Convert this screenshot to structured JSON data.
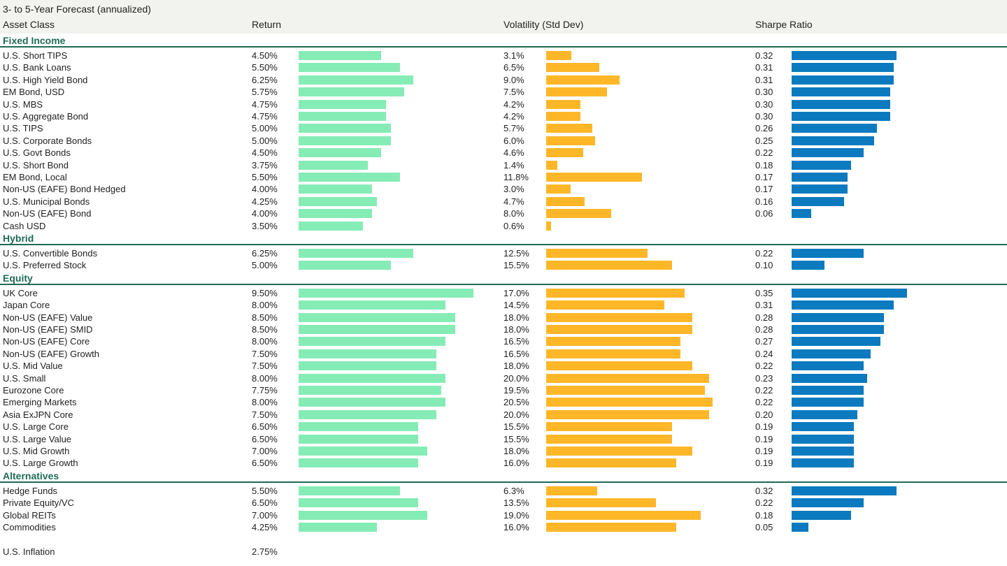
{
  "title": "3- to 5-Year Forecast (annualized)",
  "columns": {
    "asset": "Asset Class",
    "ret": "Return",
    "vol": "Volatility (Std Dev)",
    "sharpe": "Sharpe Ratio"
  },
  "colors": {
    "return": "#86ecb6",
    "volatility": "#ffb728",
    "sharpe": "#0b7abf",
    "section": "#1e6b57"
  },
  "chart_data": {
    "type": "bar",
    "series": [
      "Return",
      "Volatility (Std Dev)",
      "Sharpe Ratio"
    ],
    "groups": [
      {
        "name": "Fixed Income",
        "rows": [
          {
            "asset": "U.S. Short TIPS",
            "ret": "4.50%",
            "vol": "3.1%",
            "sharpe": "0.32"
          },
          {
            "asset": "U.S. Bank Loans",
            "ret": "5.50%",
            "vol": "6.5%",
            "sharpe": "0.31"
          },
          {
            "asset": "U.S. High Yield Bond",
            "ret": "6.25%",
            "vol": "9.0%",
            "sharpe": "0.31"
          },
          {
            "asset": "EM Bond, USD",
            "ret": "5.75%",
            "vol": "7.5%",
            "sharpe": "0.30"
          },
          {
            "asset": "U.S. MBS",
            "ret": "4.75%",
            "vol": "4.2%",
            "sharpe": "0.30"
          },
          {
            "asset": "U.S. Aggregate Bond",
            "ret": "4.75%",
            "vol": "4.2%",
            "sharpe": "0.30"
          },
          {
            "asset": "U.S. TIPS",
            "ret": "5.00%",
            "vol": "5.7%",
            "sharpe": "0.26"
          },
          {
            "asset": "U.S. Corporate Bonds",
            "ret": "5.00%",
            "vol": "6.0%",
            "sharpe": "0.25"
          },
          {
            "asset": "U.S. Govt Bonds",
            "ret": "4.50%",
            "vol": "4.6%",
            "sharpe": "0.22"
          },
          {
            "asset": "U.S. Short Bond",
            "ret": "3.75%",
            "vol": "1.4%",
            "sharpe": "0.18"
          },
          {
            "asset": "EM Bond, Local",
            "ret": "5.50%",
            "vol": "11.8%",
            "sharpe": "0.17"
          },
          {
            "asset": "Non-US (EAFE) Bond Hedged",
            "ret": "4.00%",
            "vol": "3.0%",
            "sharpe": "0.17"
          },
          {
            "asset": "U.S. Municipal Bonds",
            "ret": "4.25%",
            "vol": "4.7%",
            "sharpe": "0.16"
          },
          {
            "asset": "Non-US (EAFE) Bond",
            "ret": "4.00%",
            "vol": "8.0%",
            "sharpe": "0.06"
          },
          {
            "asset": "Cash USD",
            "ret": "3.50%",
            "vol": "0.6%",
            "sharpe": ""
          }
        ]
      },
      {
        "name": "Hybrid",
        "rows": [
          {
            "asset": "U.S. Convertible Bonds",
            "ret": "6.25%",
            "vol": "12.5%",
            "sharpe": "0.22"
          },
          {
            "asset": "U.S. Preferred Stock",
            "ret": "5.00%",
            "vol": "15.5%",
            "sharpe": "0.10"
          }
        ]
      },
      {
        "name": "Equity",
        "rows": [
          {
            "asset": "UK Core",
            "ret": "9.50%",
            "vol": "17.0%",
            "sharpe": "0.35"
          },
          {
            "asset": "Japan Core",
            "ret": "8.00%",
            "vol": "14.5%",
            "sharpe": "0.31"
          },
          {
            "asset": "Non-US (EAFE) Value",
            "ret": "8.50%",
            "vol": "18.0%",
            "sharpe": "0.28"
          },
          {
            "asset": "Non-US (EAFE) SMID",
            "ret": "8.50%",
            "vol": "18.0%",
            "sharpe": "0.28"
          },
          {
            "asset": "Non-US (EAFE) Core",
            "ret": "8.00%",
            "vol": "16.5%",
            "sharpe": "0.27"
          },
          {
            "asset": "Non-US (EAFE) Growth",
            "ret": "7.50%",
            "vol": "16.5%",
            "sharpe": "0.24"
          },
          {
            "asset": "U.S. Mid Value",
            "ret": "7.50%",
            "vol": "18.0%",
            "sharpe": "0.22"
          },
          {
            "asset": "U.S. Small",
            "ret": "8.00%",
            "vol": "20.0%",
            "sharpe": "0.23"
          },
          {
            "asset": "Eurozone Core",
            "ret": "7.75%",
            "vol": "19.5%",
            "sharpe": "0.22"
          },
          {
            "asset": "Emerging Markets",
            "ret": "8.00%",
            "vol": "20.5%",
            "sharpe": "0.22"
          },
          {
            "asset": "Asia ExJPN Core",
            "ret": "7.50%",
            "vol": "20.0%",
            "sharpe": "0.20"
          },
          {
            "asset": "U.S. Large Core",
            "ret": "6.50%",
            "vol": "15.5%",
            "sharpe": "0.19"
          },
          {
            "asset": "U.S. Large Value",
            "ret": "6.50%",
            "vol": "15.5%",
            "sharpe": "0.19"
          },
          {
            "asset": "U.S. Mid Growth",
            "ret": "7.00%",
            "vol": "18.0%",
            "sharpe": "0.19"
          },
          {
            "asset": "U.S. Large Growth",
            "ret": "6.50%",
            "vol": "16.0%",
            "sharpe": "0.19"
          }
        ]
      },
      {
        "name": "Alternatives",
        "rows": [
          {
            "asset": "Hedge Funds",
            "ret": "5.50%",
            "vol": "6.3%",
            "sharpe": "0.32"
          },
          {
            "asset": "Private Equity/VC",
            "ret": "6.50%",
            "vol": "13.5%",
            "sharpe": "0.22"
          },
          {
            "asset": "Global REITs",
            "ret": "7.00%",
            "vol": "19.0%",
            "sharpe": "0.18"
          },
          {
            "asset": "Commodities",
            "ret": "4.25%",
            "vol": "16.0%",
            "sharpe": "0.05"
          }
        ]
      }
    ],
    "footer": {
      "asset": "U.S. Inflation",
      "ret": "2.75%"
    }
  }
}
